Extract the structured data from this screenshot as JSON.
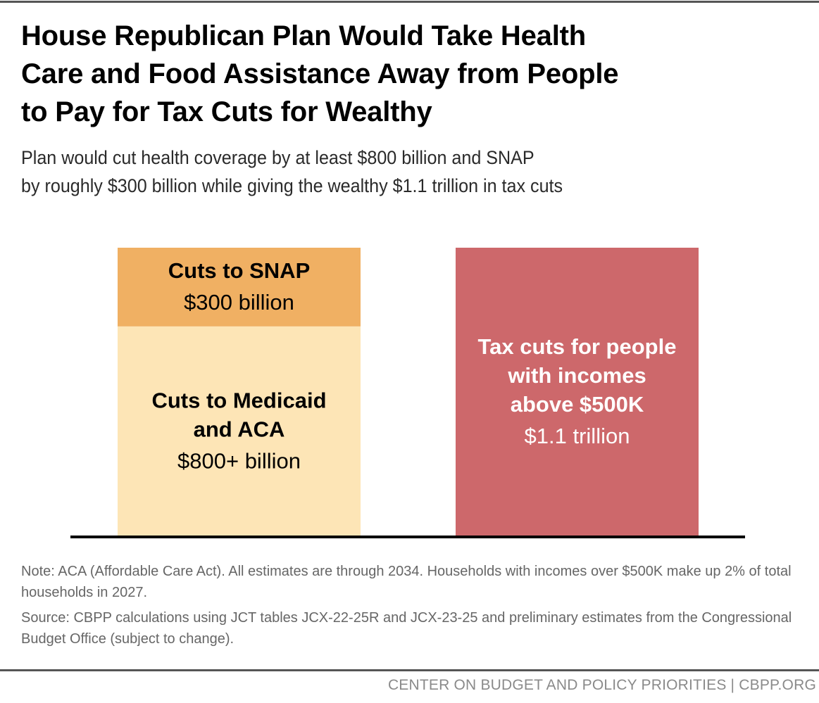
{
  "header": {
    "title_lines": [
      "House Republican Plan Would Take Health",
      "Care and Food Assistance Away from People",
      "to Pay for Tax Cuts for Wealthy"
    ],
    "subtitle_lines": [
      "Plan would cut health coverage by at least $800 billion and SNAP",
      "by roughly $300 billion while giving the wealthy $1.1 trillion in tax cuts"
    ]
  },
  "chart_data": {
    "type": "bar",
    "stacked": true,
    "units": "billions of dollars",
    "ylim": [
      0,
      1100
    ],
    "grid": false,
    "legend": "none",
    "bars": [
      {
        "segments": [
          {
            "name": "medicaid",
            "label_lines": [
              "Cuts to Medicaid",
              "and ACA"
            ],
            "value_label": "$800+ billion",
            "value": 800,
            "color": "#FDE5B6",
            "text_color": "#000000"
          },
          {
            "name": "snap",
            "label_lines": [
              "Cuts to SNAP"
            ],
            "value_label": "$300 billion",
            "value": 300,
            "color": "#F0B063",
            "text_color": "#000000"
          }
        ]
      },
      {
        "segments": [
          {
            "name": "tax-cuts",
            "label_lines": [
              "Tax cuts for people",
              "with incomes",
              "above $500K"
            ],
            "value_label": "$1.1 trillion",
            "value": 1100,
            "color": "#CD686B",
            "text_color": "#ffffff"
          }
        ]
      }
    ],
    "baseline_color": "#000000"
  },
  "notes": {
    "note": "Note: ACA (Affordable Care Act). All estimates are through 2034. Households with incomes over $500K make up 2% of total households in 2027.",
    "source": "Source: CBPP calculations using JCT tables JCX-22-25R and JCX-23-25 and preliminary estimates from the Congressional Budget Office (subject to change)."
  },
  "footer": {
    "credit": "CENTER ON BUDGET AND POLICY PRIORITIES | CBPP.ORG"
  }
}
